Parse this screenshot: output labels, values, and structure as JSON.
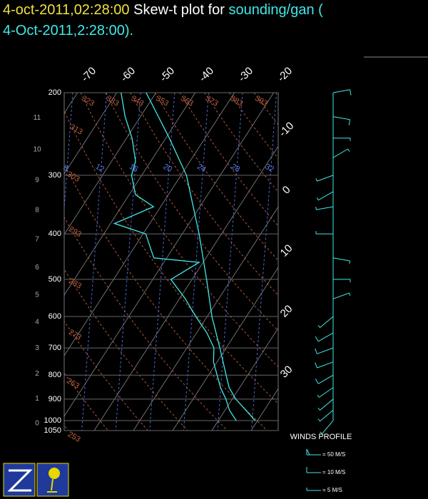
{
  "title": {
    "date": "4-oct-2011,02:28:00",
    "text": "Skew-t plot for",
    "station": "sounding/gan (",
    "station_date": "4-Oct-2011,2:28:00)."
  },
  "chart_data": {
    "type": "skew-t",
    "ylim": [
      1050,
      200
    ],
    "log_y": true,
    "pressure_ticks": [
      200,
      300,
      400,
      500,
      600,
      700,
      800,
      900,
      1000,
      1050
    ],
    "height_ticks": [
      0,
      1,
      2,
      3,
      4,
      5,
      6,
      7,
      8,
      9,
      10,
      11
    ],
    "temperature_ticks_top": [
      -70,
      -60,
      -50,
      -40,
      -30,
      -20
    ],
    "temperature_ticks_right": [
      -10,
      0,
      10,
      20,
      30
    ],
    "dry_adiabats": [
      253,
      263,
      273,
      283,
      293,
      303,
      313,
      323,
      333,
      343,
      353,
      363,
      373,
      383,
      393
    ],
    "mixing_ratio_labels": [
      8,
      12,
      16,
      20,
      24,
      28,
      32
    ],
    "series": [
      {
        "color": "#40e8e8",
        "pressure": [
          1000,
          950,
          900,
          850,
          800,
          700,
          600,
          500,
          400,
          300,
          250,
          200
        ],
        "values": [
          29.4,
          25.3,
          20.9,
          17.3,
          14.5,
          8.4,
          1.2,
          -6.3,
          -15.7,
          -28.6,
          -39.1,
          -52.5
        ]
      },
      {
        "color": "#40e8e8",
        "pressure": [
          1000,
          950,
          900,
          850,
          800,
          750,
          700,
          650,
          600,
          550,
          500,
          460,
          450,
          400,
          380,
          350,
          330,
          300,
          280,
          250,
          225,
          200
        ],
        "values": [
          24.6,
          21.1,
          18.4,
          15.1,
          12.2,
          9.1,
          6.9,
          2.6,
          -2.9,
          -8.5,
          -15.4,
          -11,
          -23.3,
          -29.3,
          -39,
          -31.8,
          -38.4,
          -42.6,
          -43.9,
          -48.6,
          -53.9,
          -58.9
        ]
      }
    ],
    "winds": {
      "pressure": [
        200,
        225,
        250,
        275,
        300,
        325,
        350,
        400,
        450,
        500,
        550,
        600,
        650,
        700,
        750,
        800,
        850,
        900,
        950,
        1000
      ],
      "direction": [
        80,
        100,
        90,
        60,
        250,
        240,
        260,
        270,
        100,
        90,
        70,
        230,
        240,
        250,
        250,
        240,
        235,
        230,
        230,
        220
      ],
      "speed": [
        12,
        10,
        8,
        6,
        7,
        9,
        8,
        6,
        9,
        7,
        5,
        8,
        10,
        12,
        11,
        10,
        9,
        8,
        7,
        5
      ]
    },
    "wind_title": "WINDS PROFILE",
    "wind_legend": [
      {
        "value": 50,
        "label": "= 50 M/S"
      },
      {
        "value": 10,
        "label": "= 10 M/S"
      },
      {
        "value": 5,
        "label": "= 5 M/S"
      }
    ]
  }
}
